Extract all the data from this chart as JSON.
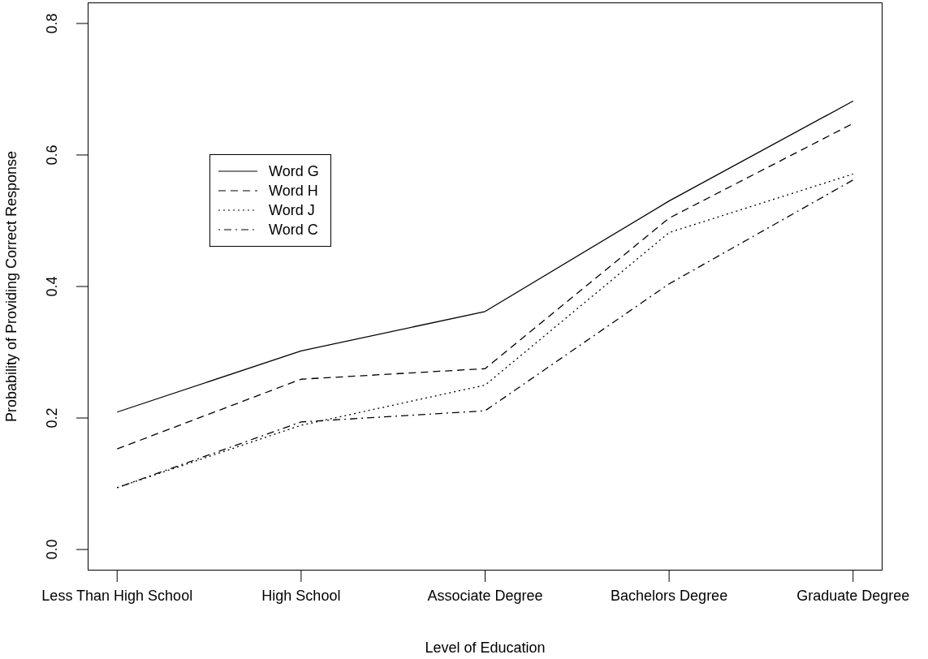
{
  "chart_data": {
    "type": "line",
    "xlabel": "Level of Education",
    "ylabel": "Probability of Providing Correct Response",
    "categories": [
      "Less Than High School",
      "High School",
      "Associate Degree",
      "Bachelors Degree",
      "Graduate Degree"
    ],
    "series": [
      {
        "name": "Word G",
        "color": "#000000",
        "line_style": "solid",
        "values": [
          0.209,
          0.302,
          0.362,
          0.53,
          0.682
        ]
      },
      {
        "name": "Word H",
        "color": "#000000",
        "line_style": "dashed",
        "values": [
          0.153,
          0.259,
          0.275,
          0.504,
          0.648
        ]
      },
      {
        "name": "Word J",
        "color": "#000000",
        "line_style": "dotted",
        "values": [
          0.094,
          0.189,
          0.25,
          0.482,
          0.571
        ]
      },
      {
        "name": "Word C",
        "color": "#000000",
        "line_style": "dashdot",
        "values": [
          0.094,
          0.194,
          0.211,
          0.404,
          0.562
        ]
      }
    ],
    "ylim": [
      -0.032,
      0.832
    ],
    "yticks": [
      {
        "value": 0,
        "label": "0.0"
      },
      {
        "value": 0.2,
        "label": "0.2"
      },
      {
        "value": 0.4,
        "label": "0.4"
      },
      {
        "value": 0.6,
        "label": "0.6"
      },
      {
        "value": 0.8,
        "label": "0.8"
      }
    ],
    "legend": "top left",
    "grid": false,
    "marker": "none"
  }
}
